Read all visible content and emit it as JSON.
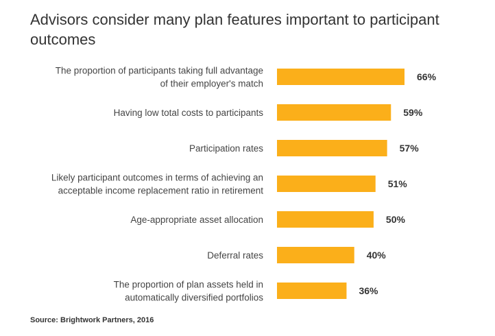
{
  "chart_data": {
    "type": "bar",
    "orientation": "horizontal",
    "title": "Advisors consider many plan features important to participant outcomes",
    "categories": [
      [
        "The proportion of participants taking full advantage",
        "of their employer's match"
      ],
      [
        "Having low total costs to participants"
      ],
      [
        "Participation rates"
      ],
      [
        "Likely participant outcomes in terms  of achieving an",
        "acceptable income replacement ratio in retirement"
      ],
      [
        "Age-appropriate asset allocation"
      ],
      [
        "Deferral rates"
      ],
      [
        "The proportion of plan assets held in",
        "automatically diversified portfolios"
      ]
    ],
    "values": [
      66,
      59,
      57,
      51,
      50,
      40,
      36
    ],
    "value_labels": [
      "66%",
      "59%",
      "57%",
      "51%",
      "50%",
      "40%",
      "36%"
    ],
    "xlim": [
      0,
      66
    ],
    "grid": false,
    "bar_color": "#FBAF1A",
    "source": "Source: Brightwork Partners, 2016"
  }
}
